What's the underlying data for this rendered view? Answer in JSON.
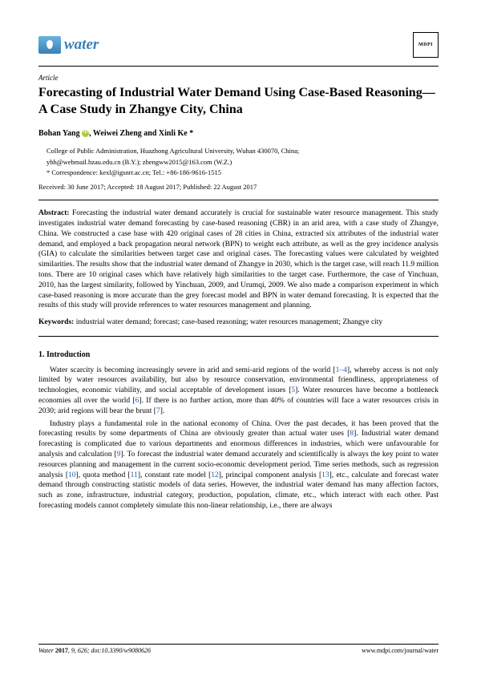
{
  "journal": {
    "name": "water",
    "publisher_logo_text": "MDPI"
  },
  "article_type": "Article",
  "title": "Forecasting of Industrial Water Demand Using Case-Based Reasoning—A Case Study in Zhangye City, China",
  "authors_line": "Bohan Yang",
  "authors_rest": ", Weiwei Zheng and Xinli Ke *",
  "affiliation": "College of Public Administration, Huazhong Agricultural University, Wuhan 430070, China;",
  "emails": "ybh@webmail.hzau.edu.cn (B.Y.); zhengww2015@163.com (W.Z.)",
  "correspondence": "*   Correspondence: kexl@igsnrr.ac.cn; Tel.: +86-186-9616-1515",
  "dates": "Received: 30 June 2017; Accepted: 18 August 2017; Published: 22 August 2017",
  "abstract_label": "Abstract:",
  "abstract_text": " Forecasting the industrial water demand accurately is crucial for sustainable water resource management. This study investigates industrial water demand forecasting by case-based reasoning (CBR) in an arid area, with a case study of Zhangye, China. We constructed a case base with 420 original cases of 28 cities in China, extracted six attributes of the industrial water demand, and employed a back propagation neural network (BPN) to weight each attribute, as well as the grey incidence analysis (GIA) to calculate the similarities between target case and original cases. The forecasting values were calculated by weighted similarities. The results show that the industrial water demand of Zhangye in 2030, which is the target case, will reach 11.9 million tons. There are 10 original cases which have relatively high similarities to the target case. Furthermore, the case of Yinchuan, 2010, has the largest similarity, followed by Yinchuan, 2009, and Urumqi, 2009. We also made a comparison experiment in which case-based reasoning is more accurate than the grey forecast model and BPN in water demand forecasting. It is expected that the results of this study will provide references to water resources management and planning.",
  "keywords_label": "Keywords:",
  "keywords_text": " industrial water demand; forecast; case-based reasoning; water resources management; Zhangye city",
  "section1_heading": "1. Introduction",
  "para1": "Water scarcity is becoming increasingly severe in arid and semi-arid regions of the world [1–4], whereby access is not only limited by water resources availability, but also by resource conservation, environmental friendliness, appropriateness of technologies, economic viability, and social acceptable of development issues [5]. Water resources have become a bottleneck economies all over the world [6]. If there is no further action, more than 40% of countries will face a water resources crisis in 2030; arid regions will bear the brunt [7].",
  "para2": "Industry plays a fundamental role in the national economy of China. Over the past decades, it has been proved that the forecasting results by some departments of China are obviously greater than actual water uses [8]. Industrial water demand forecasting is complicated due to various departments and enormous differences in industries, which were unfavourable for analysis and calculation [9]. To forecast the industrial water demand accurately and scientifically is always the key point to water resources planning and management in the current socio-economic development period. Time series methods, such as regression analysis [10], quota method [11], constant rate model [12], principal component analysis [13], etc., calculate and forecast water demand through constructing statistic models of data series. However, the industrial water demand has many affection factors, such as zone, infrastructure, industrial category, production, population, climate, etc., which interact with each other. Past forecasting models cannot completely simulate this non-linear relationship, i.e., there are always",
  "refs": {
    "r1": "1",
    "r4": "4",
    "r5": "5",
    "r6": "6",
    "r7": "7",
    "r8": "8",
    "r9": "9",
    "r10": "10",
    "r11": "11",
    "r12": "12",
    "r13": "13"
  },
  "footer": {
    "left_italic": "Water ",
    "left_bold": "2017",
    "left_rest": ", 9, 626; doi:10.3390/w9080626",
    "right": "www.mdpi.com/journal/water"
  }
}
